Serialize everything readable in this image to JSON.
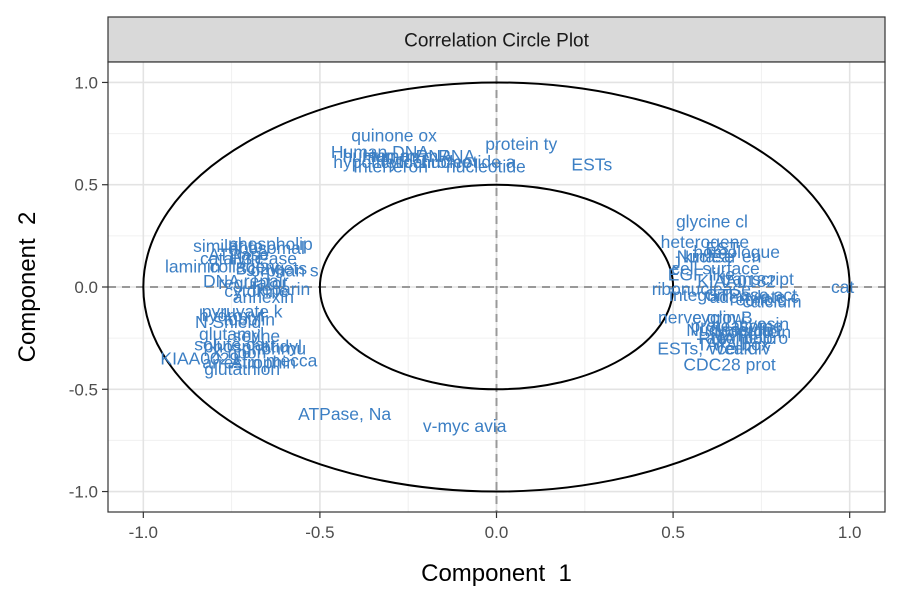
{
  "chart_data": {
    "type": "scatter",
    "title": "Correlation Circle Plot",
    "xlabel": "Component  1",
    "ylabel": "Component  2",
    "xlim": [
      -1.1,
      1.1
    ],
    "ylim": [
      -1.1,
      1.1
    ],
    "x_ticks": [
      "-1.0",
      "-0.5",
      "0.0",
      "0.5",
      "1.0"
    ],
    "y_ticks": [
      "-1.0",
      "-0.5",
      "0.0",
      "0.5",
      "1.0"
    ],
    "grid": true,
    "circles": [
      1.0,
      0.5
    ],
    "reference_lines": [
      0,
      0
    ],
    "label_color": "#3c7fc4",
    "points": [
      {
        "label": "quinone ox",
        "x": -0.29,
        "y": 0.74
      },
      {
        "label": "protein ty",
        "x": 0.07,
        "y": 0.7
      },
      {
        "label": "Human DNA",
        "x": -0.33,
        "y": 0.66
      },
      {
        "label": "human mRNA",
        "x": -0.28,
        "y": 0.64
      },
      {
        "label": "Human mRNA",
        "x": -0.22,
        "y": 0.64
      },
      {
        "label": "hypothetical",
        "x": -0.33,
        "y": 0.61
      },
      {
        "label": "Interferon",
        "x": -0.3,
        "y": 0.59
      },
      {
        "label": "cytochrome",
        "x": -0.2,
        "y": 0.61
      },
      {
        "label": "nucleotide a",
        "x": -0.08,
        "y": 0.61
      },
      {
        "label": "nucleotide",
        "x": -0.03,
        "y": 0.59
      },
      {
        "label": "ESTs",
        "x": 0.27,
        "y": 0.6
      },
      {
        "label": "glycine cl",
        "x": 0.61,
        "y": 0.32
      },
      {
        "label": "heterogene",
        "x": 0.59,
        "y": 0.22
      },
      {
        "label": "phospholip",
        "x": -0.64,
        "y": 0.21
      },
      {
        "label": "similar to",
        "x": -0.76,
        "y": 0.2
      },
      {
        "label": "ribosomal",
        "x": -0.65,
        "y": 0.19
      },
      {
        "label": "EST",
        "x": 0.64,
        "y": 0.19
      },
      {
        "label": "homologue",
        "x": 0.68,
        "y": 0.17
      },
      {
        "label": "ATPase",
        "x": -0.73,
        "y": 0.16
      },
      {
        "label": "Nuclear en",
        "x": 0.63,
        "y": 0.15
      },
      {
        "label": "catalytic",
        "x": -0.75,
        "y": 0.14
      },
      {
        "label": "kinase",
        "x": 0.6,
        "y": 0.15
      },
      {
        "label": "J",
        "x": 0.51,
        "y": 0.12
      },
      {
        "label": "laminin",
        "x": -0.86,
        "y": 0.1
      },
      {
        "label": "H3 Pase",
        "x": -0.66,
        "y": 0.14
      },
      {
        "label": "collagen",
        "x": -0.72,
        "y": 0.1
      },
      {
        "label": "cell surface",
        "x": 0.62,
        "y": 0.09
      },
      {
        "label": "EGF like",
        "x": 0.58,
        "y": 0.06
      },
      {
        "label": "Bcl2 g",
        "x": -0.67,
        "y": 0.09
      },
      {
        "label": "v-ets",
        "x": -0.59,
        "y": 0.09
      },
      {
        "label": "orphan s",
        "x": -0.6,
        "y": 0.08
      },
      {
        "label": "DNA repair",
        "x": -0.71,
        "y": 0.03
      },
      {
        "label": "KIAA0182",
        "x": 0.68,
        "y": 0.03
      },
      {
        "label": "transcript",
        "x": 0.74,
        "y": 0.04
      },
      {
        "label": "cat",
        "x": 0.98,
        "y": 0.0
      },
      {
        "label": "regulator",
        "x": -0.69,
        "y": 0.02
      },
      {
        "label": "heparin",
        "x": -0.61,
        "y": -0.01
      },
      {
        "label": "cytokine",
        "x": -0.68,
        "y": -0.02
      },
      {
        "label": "annexin",
        "x": -0.66,
        "y": -0.05
      },
      {
        "label": "ribonuclease",
        "x": 0.58,
        "y": -0.01
      },
      {
        "label": "integrin",
        "x": 0.57,
        "y": -0.04
      },
      {
        "label": "GTPase act",
        "x": 0.72,
        "y": -0.04
      },
      {
        "label": "adenylate c",
        "x": 0.73,
        "y": -0.05
      },
      {
        "label": "retinoic",
        "x": 0.74,
        "y": -0.06
      },
      {
        "label": "calcium",
        "x": 0.78,
        "y": -0.07
      },
      {
        "label": "pyruvate k",
        "x": -0.72,
        "y": -0.12
      },
      {
        "label": "hydroxyl",
        "x": -0.75,
        "y": -0.14
      },
      {
        "label": "tubulin",
        "x": -0.7,
        "y": -0.16
      },
      {
        "label": "N Shield",
        "x": -0.76,
        "y": -0.17
      },
      {
        "label": "nerve grow",
        "x": 0.58,
        "y": -0.15
      },
      {
        "label": "cyclin B",
        "x": 0.64,
        "y": -0.15
      },
      {
        "label": "myosin",
        "x": 0.75,
        "y": -0.18
      },
      {
        "label": "ubiquitin",
        "x": 0.71,
        "y": -0.21
      },
      {
        "label": "glutamyl",
        "x": -0.75,
        "y": -0.23
      },
      {
        "label": "serine",
        "x": -0.68,
        "y": -0.24
      },
      {
        "label": "Nucleoside",
        "x": 0.66,
        "y": -0.21
      },
      {
        "label": "proteasome",
        "x": 0.68,
        "y": -0.19
      },
      {
        "label": "lipoprotein",
        "x": 0.72,
        "y": -0.22
      },
      {
        "label": "apolipopro",
        "x": 0.71,
        "y": -0.25
      },
      {
        "label": "solute carr",
        "x": -0.74,
        "y": -0.28
      },
      {
        "label": "phosphatidyl",
        "x": -0.69,
        "y": -0.29
      },
      {
        "label": "X ribon",
        "x": -0.73,
        "y": -0.32
      },
      {
        "label": "ghbhrnu",
        "x": -0.63,
        "y": -0.3
      },
      {
        "label": "TATA box",
        "x": 0.67,
        "y": -0.28
      },
      {
        "label": "RNA helic",
        "x": 0.68,
        "y": -0.25
      },
      {
        "label": "cell div",
        "x": 0.7,
        "y": -0.3
      },
      {
        "label": "ESTs, Weak",
        "x": 0.59,
        "y": -0.3
      },
      {
        "label": "KIAA0029",
        "x": -0.84,
        "y": -0.35
      },
      {
        "label": "glutathion",
        "x": -0.72,
        "y": -0.4
      },
      {
        "label": "arrestin",
        "x": -0.75,
        "y": -0.37
      },
      {
        "label": "Atrophin",
        "x": -0.66,
        "y": -0.37
      },
      {
        "label": "mecca",
        "x": -0.58,
        "y": -0.36
      },
      {
        "label": "CDC28 prot",
        "x": 0.66,
        "y": -0.38
      },
      {
        "label": "ATPase, Na",
        "x": -0.43,
        "y": -0.62
      },
      {
        "label": "v-myc avia",
        "x": -0.09,
        "y": -0.68
      }
    ]
  }
}
